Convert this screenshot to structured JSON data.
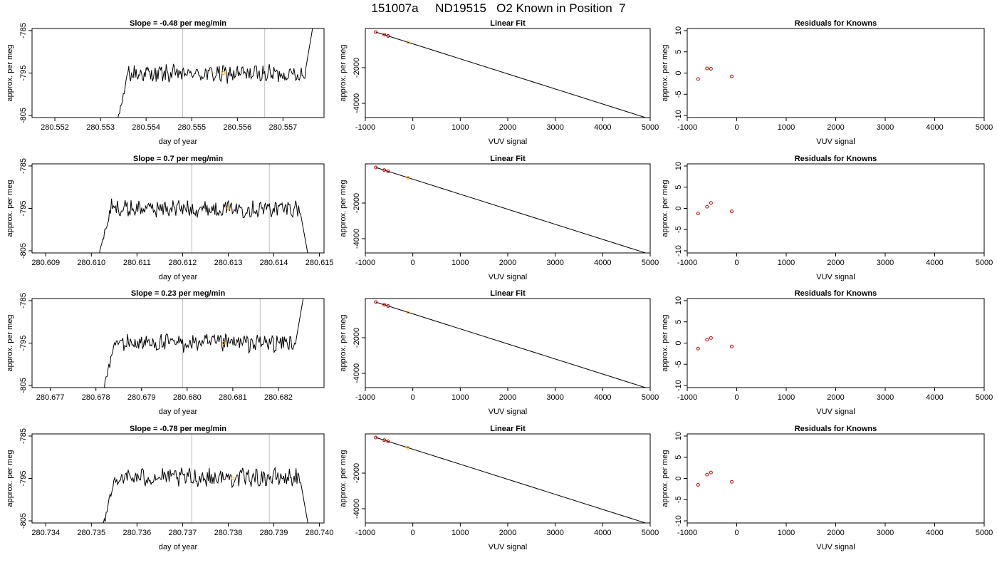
{
  "page_title": "151007a     ND19515   O2 Known in Position  7",
  "colors": {
    "trace": "#000000",
    "marker_orange": "#ffa500",
    "marker_red": "#cc0000",
    "vertical_line": "#bebebe"
  },
  "chart_data": [
    {
      "type": "line",
      "row": 1,
      "col": 1,
      "title": "Slope =  -0.48  per meg/min",
      "xlabel": "day of year",
      "ylabel": "approx. per meg",
      "xlim": [
        280.5515,
        280.5579
      ],
      "ylim": [
        -805.5,
        -784.5
      ],
      "xticks": [
        280.552,
        280.553,
        280.554,
        280.555,
        280.556,
        280.557
      ],
      "xtick_labels": [
        "280.552",
        "280.553",
        "280.554",
        "280.555",
        "280.556",
        "280.557"
      ],
      "yticks": [
        -785,
        -795,
        -805
      ],
      "ytick_labels": [
        "-785",
        "-795",
        "-805"
      ],
      "vlines": [
        280.5548,
        280.5566
      ],
      "trace_range": [
        280.5533,
        280.5577
      ],
      "trace_baseline": -795.2,
      "marker": {
        "x": 280.5557,
        "y": -795.0
      }
    },
    {
      "type": "line",
      "row": 2,
      "col": 1,
      "title": "Slope =  0.7  per meg/min",
      "xlabel": "day of year",
      "ylabel": "approx. per meg",
      "xlim": [
        280.6087,
        280.6151
      ],
      "ylim": [
        -805.5,
        -784.5
      ],
      "xticks": [
        280.609,
        280.61,
        280.611,
        280.612,
        280.613,
        280.614,
        280.615
      ],
      "xtick_labels": [
        "280.609",
        "280.610",
        "280.611",
        "280.612",
        "280.613",
        "280.614",
        "280.615"
      ],
      "yticks": [
        -785,
        -795,
        -805
      ],
      "ytick_labels": [
        "-785",
        "-795",
        "-805"
      ],
      "vlines": [
        280.6122,
        280.6139
      ],
      "trace_range": [
        280.6101,
        280.6148
      ],
      "trace_baseline": -795.0,
      "marker": {
        "x": 280.613,
        "y": -795.0
      }
    },
    {
      "type": "line",
      "row": 3,
      "col": 1,
      "title": "Slope =  0.23  per meg/min",
      "xlabel": "day of year",
      "ylabel": "approx. per meg",
      "xlim": [
        280.6766,
        280.683
      ],
      "ylim": [
        -805.5,
        -784.5
      ],
      "xticks": [
        280.677,
        280.678,
        280.679,
        280.68,
        280.681,
        280.682
      ],
      "xtick_labels": [
        "280.677",
        "280.678",
        "280.679",
        "280.680",
        "280.681",
        "280.682"
      ],
      "yticks": [
        -785,
        -795,
        -805
      ],
      "ytick_labels": [
        "-785",
        "-795",
        "-805"
      ],
      "vlines": [
        280.6799,
        280.6816
      ],
      "trace_range": [
        280.6781,
        280.6826
      ],
      "trace_baseline": -795.0,
      "marker": {
        "x": 280.6808,
        "y": -795.0
      }
    },
    {
      "type": "line",
      "row": 4,
      "col": 1,
      "title": "Slope =  -0.78  per meg/min",
      "xlabel": "day of year",
      "ylabel": "approx. per meg",
      "xlim": [
        280.7337,
        280.7401
      ],
      "ylim": [
        -805.5,
        -784.5
      ],
      "xticks": [
        280.734,
        280.735,
        280.736,
        280.737,
        280.738,
        280.739,
        280.74
      ],
      "xtick_labels": [
        "280.734",
        "280.735",
        "280.736",
        "280.737",
        "280.738",
        "280.739",
        "280.740"
      ],
      "yticks": [
        -785,
        -795,
        -805
      ],
      "ytick_labels": [
        "-785",
        "-795",
        "-805"
      ],
      "vlines": [
        280.7372,
        280.7389
      ],
      "trace_range": [
        280.7352,
        280.7398
      ],
      "trace_baseline": -794.8,
      "marker": {
        "x": 280.7381,
        "y": -795.0
      }
    },
    {
      "type": "scatter",
      "row": 1,
      "col": 2,
      "title": "Linear Fit",
      "xlabel": "VUV signal",
      "ylabel": "approx. per meg",
      "xlim": [
        -1000,
        5000
      ],
      "ylim": [
        -4800,
        200
      ],
      "xticks": [
        -1000,
        0,
        1000,
        2000,
        3000,
        4000,
        5000
      ],
      "xtick_labels": [
        "-1000",
        "0",
        "1000",
        "2000",
        "3000",
        "4000",
        "5000"
      ],
      "yticks": [
        -2000,
        -4000
      ],
      "ytick_labels": [
        "-2000",
        "-4000"
      ],
      "points": [
        {
          "x": -780,
          "y": 0
        },
        {
          "x": -600,
          "y": -150
        },
        {
          "x": -520,
          "y": -220
        }
      ],
      "highlight": {
        "x": -100,
        "y": -580
      },
      "fit_line": [
        [
          -780,
          0
        ],
        [
          4900,
          -4800
        ]
      ]
    },
    {
      "type": "scatter",
      "row": 2,
      "col": 2,
      "title": "Linear Fit",
      "xlabel": "VUV signal",
      "ylabel": "approx. per meg",
      "xlim": [
        -1000,
        5000
      ],
      "ylim": [
        -4800,
        200
      ],
      "xticks": [
        -1000,
        0,
        1000,
        2000,
        3000,
        4000,
        5000
      ],
      "xtick_labels": [
        "-1000",
        "0",
        "1000",
        "2000",
        "3000",
        "4000",
        "5000"
      ],
      "yticks": [
        -2000,
        -4000
      ],
      "ytick_labels": [
        "-2000",
        "-4000"
      ],
      "points": [
        {
          "x": -780,
          "y": 0
        },
        {
          "x": -600,
          "y": -150
        },
        {
          "x": -520,
          "y": -220
        }
      ],
      "highlight": {
        "x": -100,
        "y": -580
      },
      "fit_line": [
        [
          -780,
          0
        ],
        [
          4900,
          -4800
        ]
      ]
    },
    {
      "type": "scatter",
      "row": 3,
      "col": 2,
      "title": "Linear Fit",
      "xlabel": "VUV signal",
      "ylabel": "approx. per meg",
      "xlim": [
        -1000,
        5000
      ],
      "ylim": [
        -4800,
        200
      ],
      "xticks": [
        -1000,
        0,
        1000,
        2000,
        3000,
        4000,
        5000
      ],
      "xtick_labels": [
        "-1000",
        "0",
        "1000",
        "2000",
        "3000",
        "4000",
        "5000"
      ],
      "yticks": [
        -2000,
        -4000
      ],
      "ytick_labels": [
        "-2000",
        "-4000"
      ],
      "points": [
        {
          "x": -780,
          "y": 0
        },
        {
          "x": -600,
          "y": -150
        },
        {
          "x": -520,
          "y": -220
        }
      ],
      "highlight": {
        "x": -100,
        "y": -580
      },
      "fit_line": [
        [
          -780,
          0
        ],
        [
          4900,
          -4800
        ]
      ]
    },
    {
      "type": "scatter",
      "row": 4,
      "col": 2,
      "title": "Linear Fit",
      "xlabel": "VUV signal",
      "ylabel": "approx. per meg",
      "xlim": [
        -1000,
        5000
      ],
      "ylim": [
        -4800,
        200
      ],
      "xticks": [
        -1000,
        0,
        1000,
        2000,
        3000,
        4000,
        5000
      ],
      "xtick_labels": [
        "-1000",
        "0",
        "1000",
        "2000",
        "3000",
        "4000",
        "5000"
      ],
      "yticks": [
        -2000,
        -4000
      ],
      "ytick_labels": [
        "-2000",
        "-4000"
      ],
      "points": [
        {
          "x": -780,
          "y": 0
        },
        {
          "x": -600,
          "y": -150
        },
        {
          "x": -520,
          "y": -220
        }
      ],
      "highlight": {
        "x": -100,
        "y": -580
      },
      "fit_line": [
        [
          -780,
          0
        ],
        [
          4900,
          -4800
        ]
      ]
    },
    {
      "type": "scatter",
      "row": 1,
      "col": 3,
      "title": "Residuals for Knowns",
      "xlabel": "VUV signal",
      "ylabel": "approx. per meg",
      "xlim": [
        -1000,
        5000
      ],
      "ylim": [
        -10.5,
        10.5
      ],
      "xticks": [
        -1000,
        0,
        1000,
        2000,
        3000,
        4000,
        5000
      ],
      "xtick_labels": [
        "-1000",
        "0",
        "1000",
        "2000",
        "3000",
        "4000",
        "5000"
      ],
      "yticks": [
        10,
        5,
        0,
        -5,
        -10
      ],
      "ytick_labels": [
        "10",
        "5",
        "0",
        "-5",
        "-10"
      ],
      "points": [
        {
          "x": -780,
          "y": -1.4
        },
        {
          "x": -600,
          "y": 1.1
        },
        {
          "x": -520,
          "y": 1.0
        },
        {
          "x": -100,
          "y": -0.8
        }
      ]
    },
    {
      "type": "scatter",
      "row": 2,
      "col": 3,
      "title": "Residuals for Knowns",
      "xlabel": "VUV signal",
      "ylabel": "approx. per meg",
      "xlim": [
        -1000,
        5000
      ],
      "ylim": [
        -10.5,
        10.5
      ],
      "xticks": [
        -1000,
        0,
        1000,
        2000,
        3000,
        4000,
        5000
      ],
      "xtick_labels": [
        "-1000",
        "0",
        "1000",
        "2000",
        "3000",
        "4000",
        "5000"
      ],
      "yticks": [
        10,
        5,
        0,
        -5,
        -10
      ],
      "ytick_labels": [
        "10",
        "5",
        "0",
        "-5",
        "-10"
      ],
      "points": [
        {
          "x": -780,
          "y": -1.2
        },
        {
          "x": -600,
          "y": 0.4
        },
        {
          "x": -520,
          "y": 1.3
        },
        {
          "x": -100,
          "y": -0.7
        }
      ]
    },
    {
      "type": "scatter",
      "row": 3,
      "col": 3,
      "title": "Residuals for Knowns",
      "xlabel": "VUV signal",
      "ylabel": "approx. per meg",
      "xlim": [
        -1000,
        5000
      ],
      "ylim": [
        -10.5,
        10.5
      ],
      "xticks": [
        -1000,
        0,
        1000,
        2000,
        3000,
        4000,
        5000
      ],
      "xtick_labels": [
        "-1000",
        "0",
        "1000",
        "2000",
        "3000",
        "4000",
        "5000"
      ],
      "yticks": [
        10,
        5,
        0,
        -5,
        -10
      ],
      "ytick_labels": [
        "10",
        "5",
        "0",
        "-5",
        "-10"
      ],
      "points": [
        {
          "x": -780,
          "y": -1.3
        },
        {
          "x": -600,
          "y": 0.8
        },
        {
          "x": -520,
          "y": 1.2
        },
        {
          "x": -100,
          "y": -0.8
        }
      ]
    },
    {
      "type": "scatter",
      "row": 4,
      "col": 3,
      "title": "Residuals for Knowns",
      "xlabel": "VUV signal",
      "ylabel": "approx. per meg",
      "xlim": [
        -1000,
        5000
      ],
      "ylim": [
        -10.5,
        10.5
      ],
      "xticks": [
        -1000,
        0,
        1000,
        2000,
        3000,
        4000,
        5000
      ],
      "xtick_labels": [
        "-1000",
        "0",
        "1000",
        "2000",
        "3000",
        "4000",
        "5000"
      ],
      "yticks": [
        10,
        5,
        0,
        -5,
        -10
      ],
      "ytick_labels": [
        "10",
        "5",
        "0",
        "-5",
        "-10"
      ],
      "points": [
        {
          "x": -780,
          "y": -1.5
        },
        {
          "x": -600,
          "y": 0.9
        },
        {
          "x": -520,
          "y": 1.4
        },
        {
          "x": -100,
          "y": -0.8
        }
      ]
    }
  ]
}
